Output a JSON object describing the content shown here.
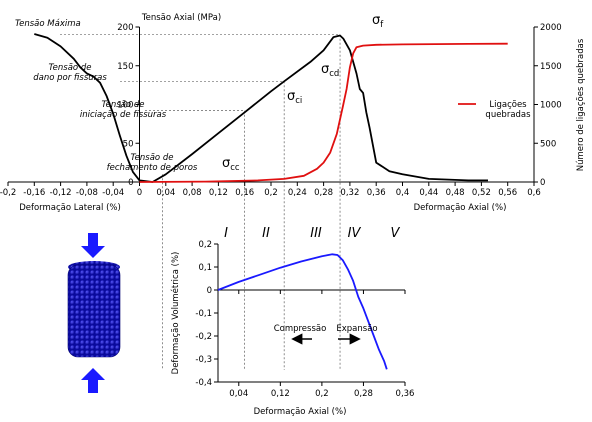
{
  "chart_data": [
    {
      "type": "line",
      "title": "Tensão Axial (MPa)",
      "xlabel_left": "Deformação Lateral (%)",
      "xlabel_right": "Deformação Axial (%)",
      "ylabel_right": "Número de ligações quebradas",
      "xlim": [
        -0.2,
        0.6
      ],
      "ylim": [
        0,
        200
      ],
      "ylim_right": [
        0,
        2000
      ],
      "x_ticks": [
        "-0,2",
        "-0,16",
        "-0,12",
        "-0,08",
        "-0,04",
        "0",
        "0,04",
        "0,08",
        "0,12",
        "0,16",
        "0,2",
        "0,24",
        "0,28",
        "0,32",
        "0,36",
        "0,4",
        "0,44",
        "0,48",
        "0,52",
        "0,56",
        "0,6"
      ],
      "x_tick_labels": [
        "-0,2",
        "-0,16",
        "-0,12",
        "-0,08",
        "-0,04",
        "0",
        "0,04",
        "0,08",
        "0,12",
        "0,16",
        "0,2",
        "0,24",
        "0,28",
        "0,32",
        "0,36",
        "0,4",
        "0,44",
        "0,48",
        "0,52",
        "0,56",
        "0,6"
      ],
      "y_ticks": [
        "0",
        "50",
        "100",
        "150",
        "200"
      ],
      "y_right_ticks": [
        "0",
        "500",
        "1000",
        "1500",
        "2000"
      ],
      "legend": {
        "label": "Ligações quebradas",
        "position": "right"
      },
      "series": [
        {
          "name": "",
          "color": "#000000",
          "points": [
            [
              -0.16,
              191
            ],
            [
              -0.14,
              186
            ],
            [
              -0.12,
              175
            ],
            [
              -0.1,
              159
            ],
            [
              -0.09,
              148
            ],
            [
              -0.08,
              140
            ],
            [
              -0.07,
              136
            ],
            [
              -0.06,
              128
            ],
            [
              -0.05,
              111
            ],
            [
              -0.04,
              88
            ],
            [
              -0.03,
              60
            ],
            [
              -0.02,
              34
            ],
            [
              -0.01,
              13
            ],
            [
              0,
              2
            ],
            [
              0.02,
              0
            ],
            [
              0.04,
              10
            ],
            [
              0.08,
              36
            ],
            [
              0.12,
              63
            ],
            [
              0.16,
              90
            ],
            [
              0.2,
              117
            ],
            [
              0.22,
              130
            ],
            [
              0.26,
              155
            ],
            [
              0.28,
              170
            ],
            [
              0.295,
              187
            ],
            [
              0.305,
              189
            ],
            [
              0.31,
              185
            ],
            [
              0.32,
              170
            ],
            [
              0.33,
              140
            ],
            [
              0.335,
              120
            ],
            [
              0.34,
              115
            ],
            [
              0.345,
              90
            ],
            [
              0.35,
              70
            ],
            [
              0.36,
              25
            ],
            [
              0.38,
              14
            ],
            [
              0.4,
              10
            ],
            [
              0.44,
              4
            ],
            [
              0.5,
              2
            ],
            [
              0.53,
              2
            ]
          ]
        },
        {
          "name": "Ligações quebradas",
          "color": "#e01010",
          "axis": "right",
          "points": [
            [
              0,
              0
            ],
            [
              0.1,
              5
            ],
            [
              0.18,
              20
            ],
            [
              0.22,
              40
            ],
            [
              0.25,
              80
            ],
            [
              0.27,
              170
            ],
            [
              0.28,
              250
            ],
            [
              0.29,
              380
            ],
            [
              0.3,
              620
            ],
            [
              0.31,
              1000
            ],
            [
              0.315,
              1200
            ],
            [
              0.32,
              1480
            ],
            [
              0.325,
              1660
            ],
            [
              0.33,
              1740
            ],
            [
              0.34,
              1760
            ],
            [
              0.36,
              1770
            ],
            [
              0.4,
              1775
            ],
            [
              0.45,
              1780
            ],
            [
              0.5,
              1782
            ],
            [
              0.56,
              1785
            ]
          ]
        }
      ],
      "annotations": [
        {
          "text": "Tensão Máxima",
          "value": 190
        },
        {
          "text": "Tensão de dano por fissuras",
          "value": 130
        },
        {
          "text": "Tensão de iniciação de fissuras",
          "value": 92
        },
        {
          "text": "Tensão de fechamento de poros",
          "value": 10
        }
      ],
      "sigma_labels": [
        {
          "text": "σ",
          "sub": "f",
          "x": 0.305
        },
        {
          "text": "σ",
          "sub": "cd",
          "x": 0.22
        },
        {
          "text": "σ",
          "sub": "ci",
          "x": 0.16
        },
        {
          "text": "σ",
          "sub": "cc",
          "x": 0.035
        }
      ]
    },
    {
      "type": "line",
      "title": "",
      "xlabel": "Deformação Axial (%)",
      "ylabel": "Deformação Volumétrica (%)",
      "xlim": [
        0,
        0.36
      ],
      "ylim": [
        -0.4,
        0.2
      ],
      "x_tick_labels": [
        "0,04",
        "0,12",
        "0,2",
        "0,28",
        "0,36"
      ],
      "x_ticks": [
        0.04,
        0.12,
        0.2,
        0.28,
        0.36
      ],
      "y_tick_labels": [
        "0,2",
        "0,1",
        "0",
        "-0,1",
        "-0,2",
        "-0,3",
        "-0,4"
      ],
      "y_ticks": [
        0.2,
        0.1,
        0,
        -0.1,
        -0.2,
        -0.3,
        -0.4
      ],
      "series": [
        {
          "name": "",
          "color": "#1a1aff",
          "points": [
            [
              0,
              0
            ],
            [
              0.04,
              0.035
            ],
            [
              0.08,
              0.066
            ],
            [
              0.12,
              0.097
            ],
            [
              0.16,
              0.124
            ],
            [
              0.2,
              0.147
            ],
            [
              0.22,
              0.155
            ],
            [
              0.23,
              0.152
            ],
            [
              0.24,
              0.13
            ],
            [
              0.25,
              0.09
            ],
            [
              0.26,
              0.04
            ],
            [
              0.27,
              -0.03
            ],
            [
              0.28,
              -0.08
            ],
            [
              0.29,
              -0.14
            ],
            [
              0.3,
              -0.2
            ],
            [
              0.31,
              -0.26
            ],
            [
              0.32,
              -0.31
            ],
            [
              0.325,
              -0.345
            ]
          ]
        }
      ],
      "regions": [
        "I",
        "II",
        "III",
        "IV",
        "V"
      ],
      "compression_label": "Compressão",
      "expansion_label": "Expansão"
    }
  ]
}
